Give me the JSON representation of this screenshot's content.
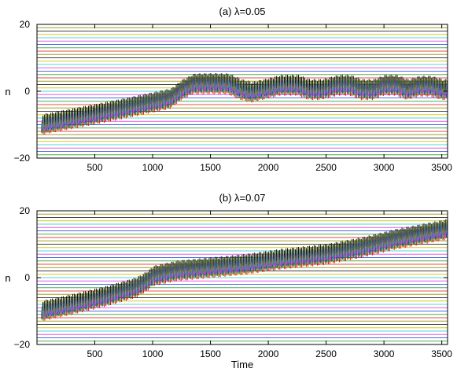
{
  "chart_data": [
    {
      "type": "line",
      "title": "(a) λ=0.05",
      "xlabel": "",
      "ylabel": "n",
      "xlim": [
        0,
        3550
      ],
      "ylim": [
        -20,
        20
      ],
      "x_ticks": [
        500,
        1000,
        1500,
        2000,
        2500,
        3000,
        3500
      ],
      "y_ticks": [
        -20,
        0,
        20
      ],
      "grid": false,
      "legend": "none",
      "level_lines": {
        "from": -20,
        "to": 20,
        "step": 1
      },
      "level_line_colors": [
        "#e03030",
        "#30a030",
        "#3050e0",
        "#e040e0",
        "#30d0d0",
        "#d0c000",
        "#202020",
        "#909000"
      ],
      "series_colors": [
        "#e00000",
        "#00a000",
        "#1040ff",
        "#ff40ff",
        "#00d0d0",
        "#c0c000",
        "#000000"
      ],
      "trajectory": {
        "x": [
          30,
          300,
          700,
          1000,
          1150,
          1250,
          1350,
          1500,
          1650,
          1750,
          1850,
          1950,
          2100,
          2250,
          2350,
          2450,
          2600,
          2700,
          2800,
          2900,
          3000,
          3100,
          3200,
          3300,
          3400,
          3500,
          3550
        ],
        "y": [
          -10,
          -8.2,
          -5.5,
          -3.3,
          -2.2,
          0.5,
          2.2,
          2.3,
          2.2,
          0.6,
          -0.3,
          0.5,
          1.8,
          1.8,
          0.5,
          0.5,
          1.8,
          1.8,
          0.5,
          0.5,
          1.8,
          1.8,
          0.5,
          1.5,
          1.5,
          0.5,
          0.5
        ]
      }
    },
    {
      "type": "line",
      "title": "(b) λ=0.07",
      "xlabel": "Time",
      "ylabel": "n",
      "xlim": [
        0,
        3550
      ],
      "ylim": [
        -20,
        20
      ],
      "x_ticks": [
        500,
        1000,
        1500,
        2000,
        2500,
        3000,
        3500
      ],
      "y_ticks": [
        -20,
        0,
        20
      ],
      "grid": false,
      "legend": "none",
      "level_lines": {
        "from": -20,
        "to": 20,
        "step": 1
      },
      "level_line_colors": [
        "#e03030",
        "#30a030",
        "#3050e0",
        "#e040e0",
        "#30d0d0",
        "#d0c000",
        "#202020",
        "#909000"
      ],
      "series_colors": [
        "#e00000",
        "#00a000",
        "#1040ff",
        "#ff40ff",
        "#00d0d0",
        "#c0c000",
        "#000000"
      ],
      "trajectory": {
        "x": [
          30,
          300,
          600,
          850,
          950,
          1000,
          1200,
          1500,
          1800,
          2100,
          2500,
          2800,
          3100,
          3400,
          3550
        ],
        "y": [
          -10,
          -8,
          -5.5,
          -3,
          -1,
          0.5,
          2,
          3,
          4,
          5.5,
          7,
          9,
          11.5,
          13.5,
          14.5
        ]
      }
    }
  ]
}
